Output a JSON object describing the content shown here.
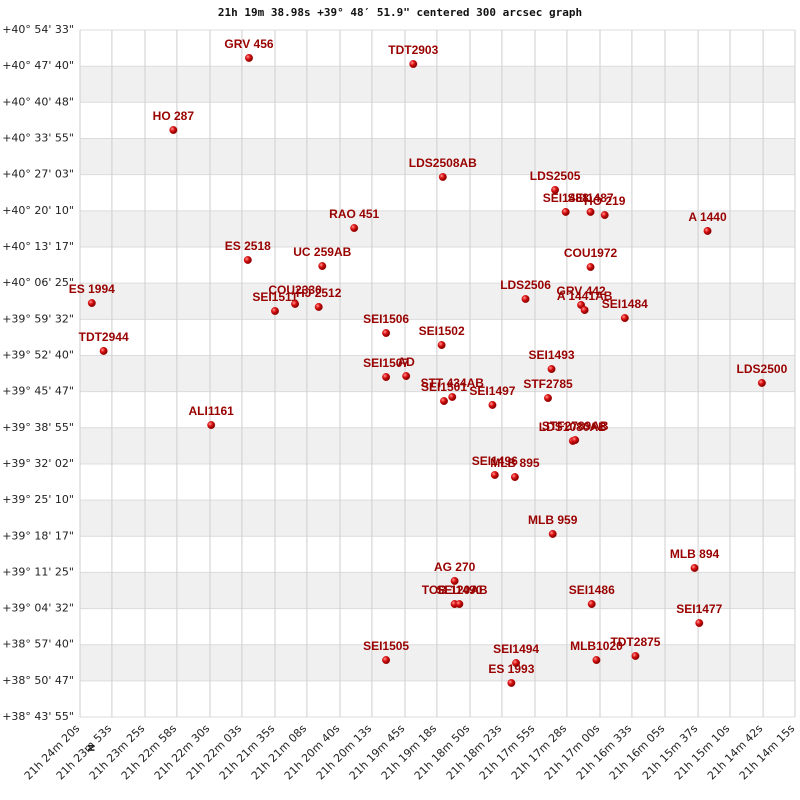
{
  "chart_data": {
    "type": "scatter",
    "title": "21h 19m 38.98s +39° 48′ 51.9\" centered 300 arcsec graph",
    "north_label": "N",
    "color": "#cc0000",
    "label_color": "#990000",
    "grid": true,
    "band_color": "#f0f0f0",
    "xlim": [
      1460,
      855
    ],
    "xticks": [
      {
        "value": 1460,
        "label": "21h 24m 20s"
      },
      {
        "value": 1433,
        "label": "21h 23m 53s"
      },
      {
        "value": 1405,
        "label": "21h 23m 25s"
      },
      {
        "value": 1378,
        "label": "21h 22m 58s"
      },
      {
        "value": 1350,
        "label": "21h 22m 30s"
      },
      {
        "value": 1323,
        "label": "21h 22m 03s"
      },
      {
        "value": 1295,
        "label": "21h 21m 35s"
      },
      {
        "value": 1268,
        "label": "21h 21m 08s"
      },
      {
        "value": 1240,
        "label": "21h 20m 40s"
      },
      {
        "value": 1213,
        "label": "21h 20m 13s"
      },
      {
        "value": 1185,
        "label": "21h 19m 45s"
      },
      {
        "value": 1158,
        "label": "21h 19m 18s"
      },
      {
        "value": 1130,
        "label": "21h 18m 50s"
      },
      {
        "value": 1103,
        "label": "21h 18m 23s"
      },
      {
        "value": 1075,
        "label": "21h 17m 55s"
      },
      {
        "value": 1048,
        "label": "21h 17m 28s"
      },
      {
        "value": 1020,
        "label": "21h 17m 00s"
      },
      {
        "value": 993,
        "label": "21h 16m 33s"
      },
      {
        "value": 965,
        "label": "21h 16m 05s"
      },
      {
        "value": 937,
        "label": "21h 15m 37s"
      },
      {
        "value": 910,
        "label": "21h 15m 10s"
      },
      {
        "value": 882,
        "label": "21h 14m 42s"
      },
      {
        "value": 855,
        "label": "21h 14m 15s"
      }
    ],
    "ylim": [
      139435,
      147273
    ],
    "yticks": [
      {
        "value": 147273,
        "label": "+40° 54' 33\""
      },
      {
        "value": 146860,
        "label": "+40° 47' 40\""
      },
      {
        "value": 146448,
        "label": "+40° 40' 48\""
      },
      {
        "value": 146035,
        "label": "+40° 33' 55\""
      },
      {
        "value": 145623,
        "label": "+40° 27' 03\""
      },
      {
        "value": 145210,
        "label": "+40° 20' 10\""
      },
      {
        "value": 144797,
        "label": "+40° 13' 17\""
      },
      {
        "value": 144385,
        "label": "+40° 06' 25\""
      },
      {
        "value": 143972,
        "label": "+39° 59' 32\""
      },
      {
        "value": 143560,
        "label": "+39° 52' 40\""
      },
      {
        "value": 143147,
        "label": "+39° 45' 47\""
      },
      {
        "value": 142735,
        "label": "+39° 38' 55\""
      },
      {
        "value": 142322,
        "label": "+39° 32' 02\""
      },
      {
        "value": 141910,
        "label": "+39° 25' 10\""
      },
      {
        "value": 141497,
        "label": "+39° 18' 17\""
      },
      {
        "value": 141085,
        "label": "+39° 11' 25\""
      },
      {
        "value": 140672,
        "label": "+39° 04' 32\""
      },
      {
        "value": 140260,
        "label": "+38° 57' 40\""
      },
      {
        "value": 139847,
        "label": "+38° 50' 47\""
      },
      {
        "value": 139435,
        "label": "+38° 43' 55\""
      }
    ],
    "points": [
      {
        "name": "GRV 456",
        "x": 1317,
        "y": 146954
      },
      {
        "name": "TDT2903",
        "x": 1178,
        "y": 146885
      },
      {
        "name": "HO  287",
        "x": 1381,
        "y": 146132
      },
      {
        "name": "LDS2508AB",
        "x": 1153,
        "y": 145596
      },
      {
        "name": "LDS2505",
        "x": 1058,
        "y": 145448
      },
      {
        "name": "SEI1488",
        "x": 1049,
        "y": 145197
      },
      {
        "name": "SEI1487",
        "x": 1028,
        "y": 145197
      },
      {
        "name": "HO 219",
        "x": 1016,
        "y": 145162
      },
      {
        "name": "A  1440",
        "x": 929,
        "y": 144980
      },
      {
        "name": "RAO 451",
        "x": 1228,
        "y": 145014
      },
      {
        "name": "ES 2518",
        "x": 1318,
        "y": 144649
      },
      {
        "name": "UC  259AB",
        "x": 1255,
        "y": 144580
      },
      {
        "name": "COU1972",
        "x": 1028,
        "y": 144569
      },
      {
        "name": "ES 1994",
        "x": 1450,
        "y": 144158
      },
      {
        "name": "LDS2506",
        "x": 1083,
        "y": 144204
      },
      {
        "name": "GRV 442",
        "x": 1036,
        "y": 144136
      },
      {
        "name": "A  1441AB",
        "x": 1033,
        "y": 144078
      },
      {
        "name": "SEI1484",
        "x": 999,
        "y": 143987
      },
      {
        "name": "SEI1511",
        "x": 1295,
        "y": 144067
      },
      {
        "name": "COU2330",
        "x": 1278,
        "y": 144147
      },
      {
        "name": "HJ 2512",
        "x": 1258,
        "y": 144113
      },
      {
        "name": "SEI1506",
        "x": 1201,
        "y": 143816
      },
      {
        "name": "SEI1502",
        "x": 1154,
        "y": 143679
      },
      {
        "name": "TDT2944",
        "x": 1440,
        "y": 143611
      },
      {
        "name": "SEI1493",
        "x": 1061,
        "y": 143405
      },
      {
        "name": "SEI1507",
        "x": 1201,
        "y": 143314
      },
      {
        "name": "AD",
        "x": 1184,
        "y": 143325
      },
      {
        "name": "STT 434AB",
        "x": 1145,
        "y": 143086
      },
      {
        "name": "SEI1501",
        "x": 1152,
        "y": 143040
      },
      {
        "name": "SEI1497",
        "x": 1111,
        "y": 142995
      },
      {
        "name": "STF2785",
        "x": 1064,
        "y": 143074
      },
      {
        "name": "LDS2500",
        "x": 883,
        "y": 143246
      },
      {
        "name": "ALI1161",
        "x": 1349,
        "y": 142766
      },
      {
        "name": "LDS1080AB",
        "x": 1043,
        "y": 142584
      },
      {
        "name": "STF2789AB",
        "x": 1041,
        "y": 142595
      },
      {
        "name": "SEI1496",
        "x": 1109,
        "y": 142196
      },
      {
        "name": "MLB 895",
        "x": 1092,
        "y": 142173
      },
      {
        "name": "MLB 959",
        "x": 1060,
        "y": 141523
      },
      {
        "name": "MLB 894",
        "x": 940,
        "y": 141135
      },
      {
        "name": "AG  270",
        "x": 1143,
        "y": 140987
      },
      {
        "name": "TOB 120AB",
        "x": 1143,
        "y": 140724
      },
      {
        "name": "SEI1490",
        "x": 1139,
        "y": 140724
      },
      {
        "name": "SEI1486",
        "x": 1027,
        "y": 140724
      },
      {
        "name": "SEI1477",
        "x": 936,
        "y": 140507
      },
      {
        "name": "SEI1505",
        "x": 1201,
        "y": 140085
      },
      {
        "name": "MLB1020",
        "x": 1023,
        "y": 140085
      },
      {
        "name": "TDT2875",
        "x": 990,
        "y": 140131
      },
      {
        "name": "SEI1494",
        "x": 1091,
        "y": 140051
      },
      {
        "name": "ES 1993",
        "x": 1095,
        "y": 139823
      }
    ]
  }
}
